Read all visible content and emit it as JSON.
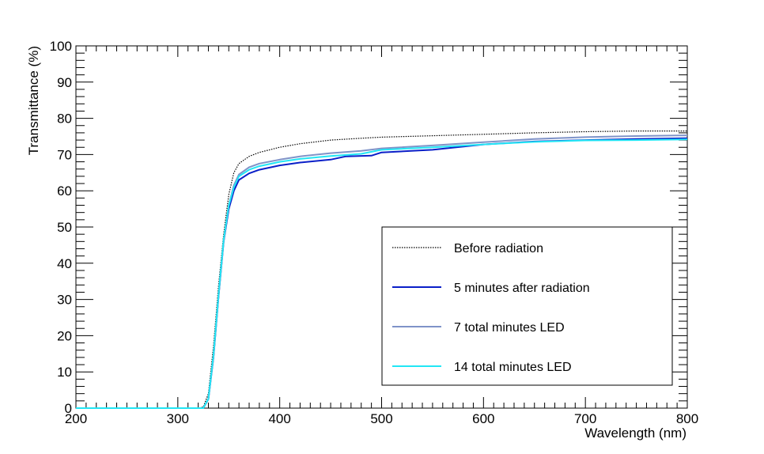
{
  "chart_data": {
    "type": "line",
    "xlabel": "Wavelength (nm)",
    "ylabel": "Transmittance (%)",
    "xlim": [
      200,
      800
    ],
    "ylim": [
      0,
      100
    ],
    "x_ticks": [
      200,
      300,
      400,
      500,
      600,
      700,
      800
    ],
    "y_ticks": [
      0,
      10,
      20,
      30,
      40,
      50,
      60,
      70,
      80,
      90,
      100
    ],
    "grid": false,
    "legend_position": "bottom-right",
    "series": [
      {
        "name": "Before radiation",
        "color": "#000000",
        "style": "dotted",
        "points": [
          [
            200,
            0
          ],
          [
            320,
            0
          ],
          [
            325,
            0.3
          ],
          [
            330,
            4
          ],
          [
            335,
            17
          ],
          [
            340,
            34
          ],
          [
            345,
            48
          ],
          [
            350,
            59
          ],
          [
            355,
            65
          ],
          [
            360,
            67.5
          ],
          [
            370,
            69.5
          ],
          [
            380,
            70.6
          ],
          [
            400,
            72
          ],
          [
            420,
            73
          ],
          [
            450,
            74
          ],
          [
            480,
            74.5
          ],
          [
            500,
            74.8
          ],
          [
            550,
            75.2
          ],
          [
            600,
            75.6
          ],
          [
            650,
            76
          ],
          [
            700,
            76.3
          ],
          [
            750,
            76.5
          ],
          [
            800,
            76.5
          ]
        ]
      },
      {
        "name": "5 minutes after radiation",
        "color": "#0a1fc8",
        "style": "solid",
        "points": [
          [
            200,
            0
          ],
          [
            325,
            0
          ],
          [
            330,
            2.5
          ],
          [
            335,
            14
          ],
          [
            340,
            31
          ],
          [
            345,
            46
          ],
          [
            350,
            55
          ],
          [
            355,
            60
          ],
          [
            360,
            63
          ],
          [
            370,
            64.8
          ],
          [
            380,
            65.8
          ],
          [
            400,
            67
          ],
          [
            420,
            67.8
          ],
          [
            450,
            68.6
          ],
          [
            465,
            69.5
          ],
          [
            490,
            69.7
          ],
          [
            500,
            70.6
          ],
          [
            550,
            71.3
          ],
          [
            600,
            72.8
          ],
          [
            650,
            73.6
          ],
          [
            700,
            74
          ],
          [
            750,
            74.3
          ],
          [
            800,
            74.5
          ]
        ]
      },
      {
        "name": "7 total minutes LED",
        "color": "#7f93c8",
        "style": "solid",
        "points": [
          [
            200,
            0
          ],
          [
            325,
            0
          ],
          [
            330,
            2.5
          ],
          [
            335,
            14
          ],
          [
            340,
            31
          ],
          [
            345,
            46
          ],
          [
            350,
            56
          ],
          [
            355,
            61.5
          ],
          [
            360,
            64.5
          ],
          [
            370,
            66.5
          ],
          [
            380,
            67.5
          ],
          [
            400,
            68.6
          ],
          [
            420,
            69.5
          ],
          [
            450,
            70.4
          ],
          [
            480,
            71
          ],
          [
            500,
            71.7
          ],
          [
            550,
            72.5
          ],
          [
            600,
            73.4
          ],
          [
            650,
            74.3
          ],
          [
            700,
            74.8
          ],
          [
            750,
            75.1
          ],
          [
            800,
            75.3
          ]
        ]
      },
      {
        "name": "14 total minutes LED",
        "color": "#22e6f5",
        "style": "solid",
        "points": [
          [
            200,
            0
          ],
          [
            325,
            0
          ],
          [
            330,
            2.6
          ],
          [
            335,
            14.5
          ],
          [
            340,
            31.5
          ],
          [
            345,
            46.5
          ],
          [
            350,
            56
          ],
          [
            355,
            61
          ],
          [
            360,
            64
          ],
          [
            370,
            65.8
          ],
          [
            380,
            66.8
          ],
          [
            400,
            68
          ],
          [
            420,
            68.8
          ],
          [
            450,
            69.6
          ],
          [
            480,
            70.2
          ],
          [
            500,
            71.3
          ],
          [
            550,
            72
          ],
          [
            600,
            72.8
          ],
          [
            650,
            73.5
          ],
          [
            700,
            73.9
          ],
          [
            750,
            74
          ],
          [
            800,
            74.2
          ]
        ]
      }
    ]
  }
}
